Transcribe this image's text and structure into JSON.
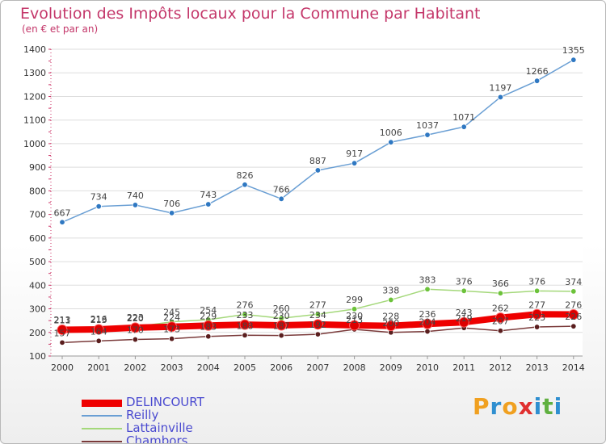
{
  "title": "Evolution des Impôts locaux pour la Commune par Habitant",
  "subtitle": "(en € et par an)",
  "chart_data": {
    "type": "line",
    "title": "Evolution des Impôts locaux pour la Commune par Habitant",
    "subtitle": "(en € et par an)",
    "xlabel": "",
    "ylabel": "",
    "ylim": [
      100,
      1400
    ],
    "y_ticks": [
      100,
      200,
      300,
      400,
      500,
      600,
      700,
      800,
      900,
      1000,
      1100,
      1200,
      1300,
      1400
    ],
    "categories": [
      "2000",
      "2001",
      "2002",
      "2003",
      "2004",
      "2005",
      "2006",
      "2007",
      "2008",
      "2009",
      "2010",
      "2011",
      "2012",
      "2013",
      "2014"
    ],
    "series": [
      {
        "name": "Reilly",
        "color": "#6a9fd4",
        "marker": "#2f78c2",
        "values": [
          667,
          734,
          740,
          706,
          743,
          826,
          766,
          887,
          917,
          1006,
          1037,
          1071,
          1197,
          1266,
          1355
        ],
        "labels": [
          "667",
          "734",
          "740",
          "706",
          "743",
          "826",
          "766",
          "887",
          "917",
          "1006",
          "1037",
          "1071",
          "1197",
          "1266",
          "1355"
        ]
      },
      {
        "name": "Lattainville",
        "color": "#a4d87a",
        "marker": "#6cc23a",
        "values": [
          213,
          216,
          223,
          245,
          254,
          276,
          260,
          277,
          299,
          338,
          383,
          376,
          366,
          376,
          374
        ],
        "labels": [
          "213",
          "216",
          "223",
          "245",
          "254",
          "276",
          "260",
          "277",
          "299",
          "338",
          "383",
          "376",
          "366",
          "376",
          "374"
        ]
      },
      {
        "name": "Chambors",
        "color": "#7a3a3a",
        "marker": "#5a1e1e",
        "values": [
          157,
          164,
          170,
          173,
          183,
          188,
          187,
          192,
          213,
          200,
          204,
          219,
          207,
          223,
          226
        ],
        "labels": [
          "157",
          "164",
          "170",
          "173",
          "183",
          "188",
          "187",
          "192",
          "213",
          "200",
          "204",
          "219",
          "207",
          "223",
          "226"
        ]
      },
      {
        "name": "DELINCOURT",
        "color": "#ee0000",
        "marker": "#dd0000",
        "values": [
          211,
          213,
          220,
          224,
          229,
          233,
          230,
          234,
          230,
          228,
          236,
          243,
          262,
          277,
          276
        ],
        "labels": [
          "211",
          "213",
          "220",
          "224",
          "229",
          "233",
          "230",
          "234",
          "230",
          "228",
          "236",
          "243",
          "262",
          "277",
          "276"
        ]
      }
    ]
  },
  "legend": [
    {
      "label": "DELINCOURT",
      "color": "#ee0000"
    },
    {
      "label": "Reilly",
      "color": "#6a9fd4"
    },
    {
      "label": "Lattainville",
      "color": "#a4d87a"
    },
    {
      "label": "Chambors",
      "color": "#7a3a3a"
    }
  ],
  "logo": {
    "letters": [
      "P",
      "r",
      "o",
      "x",
      "i",
      "t",
      "i"
    ],
    "colors": [
      "#f0a020",
      "#2f8fd0",
      "#f0a020",
      "#e03030",
      "#2f8fd0",
      "#60b040",
      "#2f8fd0"
    ]
  }
}
